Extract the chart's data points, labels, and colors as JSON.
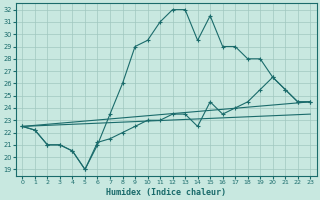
{
  "xlabel": "Humidex (Indice chaleur)",
  "background_color": "#c8e8e0",
  "grid_color": "#a0c8c0",
  "line_color": "#1a6b6b",
  "xlim": [
    -0.5,
    23.5
  ],
  "ylim": [
    18.5,
    32.5
  ],
  "xticks": [
    0,
    1,
    2,
    3,
    4,
    5,
    6,
    7,
    8,
    9,
    10,
    11,
    12,
    13,
    14,
    15,
    16,
    17,
    18,
    19,
    20,
    21,
    22,
    23
  ],
  "yticks": [
    19,
    20,
    21,
    22,
    23,
    24,
    25,
    26,
    27,
    28,
    29,
    30,
    31,
    32
  ],
  "line1_x": [
    0,
    1,
    2,
    3,
    4,
    5,
    6,
    7,
    8,
    9,
    10,
    11,
    12,
    13,
    14,
    15,
    16,
    17,
    18,
    19,
    20,
    21,
    22,
    23
  ],
  "line1_y": [
    22.5,
    22.2,
    21.0,
    21.0,
    20.5,
    19.0,
    21.0,
    23.5,
    26.0,
    29.0,
    29.5,
    31.0,
    32.0,
    32.0,
    29.5,
    31.5,
    29.0,
    29.0,
    28.0,
    28.0,
    26.5,
    25.5,
    24.5,
    24.5
  ],
  "line2_x": [
    0,
    1,
    2,
    3,
    4,
    5,
    6,
    7,
    8,
    9,
    10,
    11,
    12,
    13,
    14,
    15,
    16,
    17,
    18,
    19,
    20,
    21,
    22,
    23
  ],
  "line2_y": [
    22.5,
    22.2,
    21.0,
    21.0,
    20.5,
    19.0,
    21.2,
    21.5,
    22.0,
    22.5,
    23.0,
    23.0,
    23.5,
    23.5,
    22.5,
    24.5,
    23.5,
    24.0,
    24.5,
    25.5,
    26.5,
    25.5,
    24.5,
    24.5
  ],
  "line3_x": [
    0,
    23
  ],
  "line3_y": [
    22.5,
    24.5
  ],
  "line4_x": [
    0,
    23
  ],
  "line4_y": [
    22.5,
    23.5
  ]
}
